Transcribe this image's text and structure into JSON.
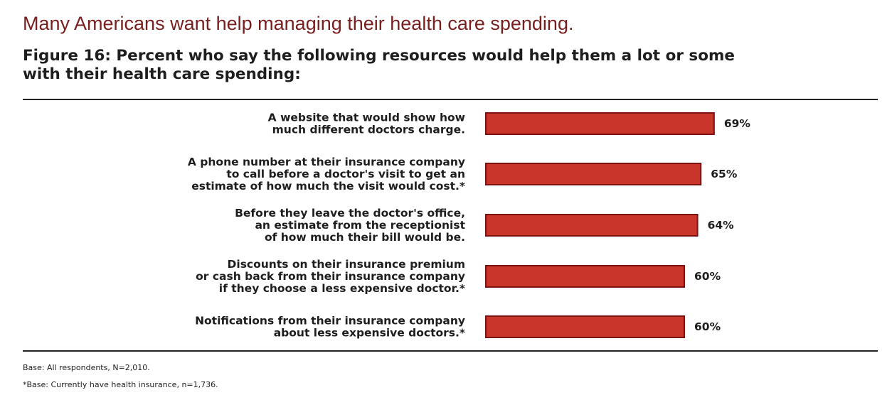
{
  "headline": "Many Americans want help managing their health care spending.",
  "figure_title_lines": [
    "Figure 16: Percent who say the following resources would help them a lot or some",
    "with their health care spending:"
  ],
  "notes": {
    "base": "Base: All respondents, N=2,010.",
    "base_insured": "*Base: Currently have health insurance, n=1,736."
  },
  "colors": {
    "bar": "#c9352b",
    "bar_border": "#7a1212",
    "headline": "#7a1f1f"
  },
  "chart_data": {
    "type": "bar",
    "orientation": "horizontal",
    "categories": [
      [
        "A website that would show how",
        "much different doctors charge."
      ],
      [
        "A phone number at their insurance company",
        "to call before a doctor's visit to get an",
        "estimate of how much the visit would cost.*"
      ],
      [
        "Before they leave the doctor's office,",
        "an estimate from the receptionist",
        "of how much their bill would be."
      ],
      [
        "Discounts on their insurance premium",
        "or cash back from their insurance company",
        "if they choose a less expensive doctor.*"
      ],
      [
        "Notifications from their insurance company",
        "about less expensive doctors.*"
      ]
    ],
    "values": [
      69,
      65,
      64,
      60,
      60
    ],
    "value_labels": [
      "69%",
      "65%",
      "64%",
      "60%",
      "60%"
    ],
    "unit": "%",
    "grid": false,
    "legend": "none"
  }
}
